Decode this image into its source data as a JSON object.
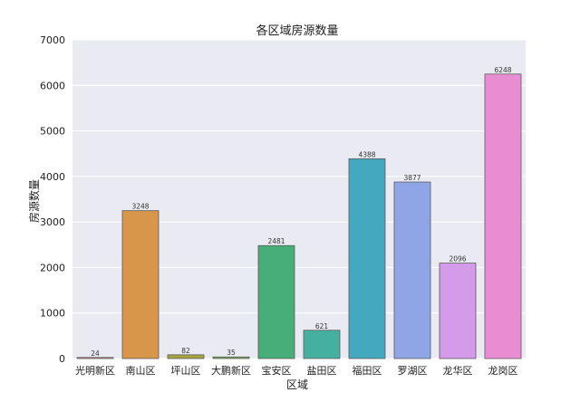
{
  "chart_data": {
    "type": "bar",
    "title": "各区域房源数量",
    "xlabel": "区域",
    "ylabel": "房源数量",
    "ylim": [
      0,
      7000
    ],
    "yticks": [
      0,
      1000,
      2000,
      3000,
      4000,
      5000,
      6000,
      7000
    ],
    "grid": true,
    "categories": [
      "光明新区",
      "南山区",
      "坪山区",
      "大鹏新区",
      "宝安区",
      "盐田区",
      "福田区",
      "罗湖区",
      "龙华区",
      "龙岗区"
    ],
    "values": [
      24,
      3248,
      82,
      35,
      2481,
      621,
      4388,
      3877,
      2096,
      6248
    ],
    "colors": [
      "#e8837a",
      "#d8964a",
      "#a6a43d",
      "#7aae55",
      "#47ad79",
      "#45b09f",
      "#44a8bf",
      "#8fa5e6",
      "#d39be9",
      "#e98dd2"
    ],
    "background": "#eaeaf2"
  }
}
